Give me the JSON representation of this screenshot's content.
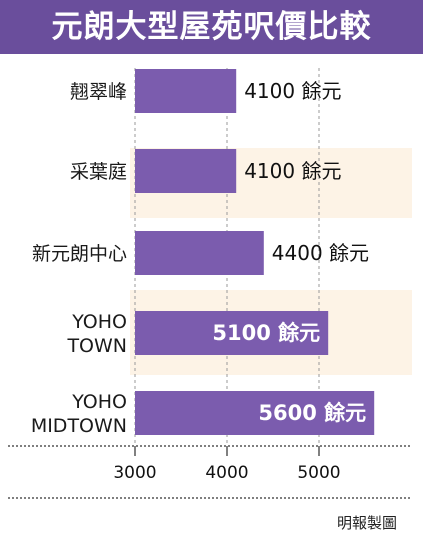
{
  "title": "元朗大型屋苑呎價比較",
  "credit": "明報製圖",
  "colors": {
    "bar": "#7b5cae",
    "title_bg": "#6a4e9c",
    "band": "#fdf3e6",
    "axis": "#555555"
  },
  "chart_data": {
    "type": "bar",
    "orientation": "horizontal",
    "title": "元朗大型屋苑呎價比較",
    "categories": [
      [
        "翹翠峰"
      ],
      [
        "采葉庭"
      ],
      [
        "新元朗中心"
      ],
      [
        "YOHO",
        "TOWN"
      ],
      [
        "YOHO",
        "MIDTOWN"
      ]
    ],
    "values": [
      4100,
      4100,
      4400,
      5100,
      5600
    ],
    "value_labels": [
      "4100 餘元",
      "4100 餘元",
      "4400 餘元",
      "5100 餘元",
      "5600 餘元"
    ],
    "label_inside": [
      false,
      false,
      false,
      true,
      true
    ],
    "banded_rows": [
      1,
      3
    ],
    "xlim": [
      3000,
      5800
    ],
    "xticks": [
      3000,
      4000,
      5000
    ],
    "xtick_labels": [
      "3000",
      "4000",
      "5000"
    ],
    "grid": true
  }
}
